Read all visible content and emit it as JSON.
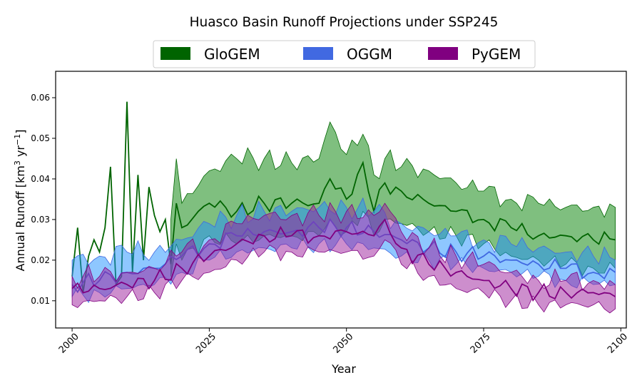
{
  "chart_data": {
    "type": "area",
    "title": "Huasco Basin Runoff Projections under SSP245",
    "xlabel": "Year",
    "ylabel_main": "Annual Runoff [km",
    "ylabel_sup1": "3",
    "ylabel_mid": " yr",
    "ylabel_sup2": "−1",
    "ylabel_end": "]",
    "xlim": [
      1997,
      2101
    ],
    "ylim": [
      0.0033,
      0.0665
    ],
    "x_ticks": [
      2000,
      2025,
      2050,
      2075,
      2100
    ],
    "x_tick_labels": [
      "2000",
      "2025",
      "2050",
      "2075",
      "2100"
    ],
    "y_ticks": [
      0.01,
      0.02,
      0.03,
      0.04,
      0.05,
      0.06
    ],
    "y_tick_labels": [
      "0.01",
      "0.02",
      "0.03",
      "0.04",
      "0.05",
      "0.06"
    ],
    "legend_position": "top-center, outside plot",
    "grid": false,
    "x_start": 2000,
    "x_end": 2099,
    "series": [
      {
        "name": "GloGEM",
        "line_color": "#006400",
        "fill_color": "#008000",
        "median_samples": [
          [
            2000,
            0.016
          ],
          [
            2001,
            0.028
          ],
          [
            2002,
            0.012
          ],
          [
            2003,
            0.021
          ],
          [
            2004,
            0.025
          ],
          [
            2005,
            0.022
          ],
          [
            2006,
            0.028
          ],
          [
            2007,
            0.043
          ],
          [
            2008,
            0.014
          ],
          [
            2009,
            0.016
          ],
          [
            2010,
            0.059
          ],
          [
            2011,
            0.017
          ],
          [
            2012,
            0.041
          ],
          [
            2013,
            0.02
          ],
          [
            2014,
            0.038
          ],
          [
            2015,
            0.031
          ],
          [
            2016,
            0.027
          ],
          [
            2017,
            0.03
          ],
          [
            2018,
            0.019
          ],
          [
            2019,
            0.034
          ],
          [
            2020,
            0.028
          ],
          [
            2025,
            0.034
          ],
          [
            2030,
            0.032
          ],
          [
            2035,
            0.034
          ],
          [
            2040,
            0.034
          ],
          [
            2045,
            0.034
          ],
          [
            2047,
            0.04
          ],
          [
            2050,
            0.035
          ],
          [
            2053,
            0.044
          ],
          [
            2055,
            0.032
          ],
          [
            2057,
            0.039
          ],
          [
            2060,
            0.037
          ],
          [
            2065,
            0.034
          ],
          [
            2070,
            0.032
          ],
          [
            2075,
            0.03
          ],
          [
            2080,
            0.028
          ],
          [
            2085,
            0.026
          ],
          [
            2090,
            0.026
          ],
          [
            2095,
            0.025
          ],
          [
            2099,
            0.025
          ]
        ],
        "upper_samples": [
          [
            2018,
            0.03
          ],
          [
            2019,
            0.045
          ],
          [
            2020,
            0.034
          ],
          [
            2025,
            0.042
          ],
          [
            2030,
            0.045
          ],
          [
            2035,
            0.045
          ],
          [
            2040,
            0.044
          ],
          [
            2045,
            0.045
          ],
          [
            2047,
            0.054
          ],
          [
            2050,
            0.046
          ],
          [
            2053,
            0.051
          ],
          [
            2055,
            0.041
          ],
          [
            2057,
            0.045
          ],
          [
            2060,
            0.043
          ],
          [
            2065,
            0.042
          ],
          [
            2070,
            0.039
          ],
          [
            2075,
            0.037
          ],
          [
            2080,
            0.035
          ],
          [
            2085,
            0.034
          ],
          [
            2090,
            0.033
          ],
          [
            2095,
            0.033
          ],
          [
            2099,
            0.033
          ]
        ],
        "lower_samples": [
          [
            2018,
            0.016
          ],
          [
            2019,
            0.024
          ],
          [
            2020,
            0.02
          ],
          [
            2025,
            0.026
          ],
          [
            2030,
            0.024
          ],
          [
            2035,
            0.026
          ],
          [
            2040,
            0.026
          ],
          [
            2045,
            0.026
          ],
          [
            2047,
            0.03
          ],
          [
            2050,
            0.027
          ],
          [
            2053,
            0.032
          ],
          [
            2055,
            0.026
          ],
          [
            2057,
            0.03
          ],
          [
            2060,
            0.029
          ],
          [
            2065,
            0.027
          ],
          [
            2070,
            0.026
          ],
          [
            2075,
            0.024
          ],
          [
            2080,
            0.021
          ],
          [
            2085,
            0.02
          ],
          [
            2090,
            0.019
          ],
          [
            2095,
            0.018
          ],
          [
            2099,
            0.018
          ]
        ]
      },
      {
        "name": "OGGM",
        "line_color": "#4169E1",
        "fill_color": "#1E90FF",
        "median_samples": [
          [
            2000,
            0.014
          ],
          [
            2005,
            0.015
          ],
          [
            2010,
            0.017
          ],
          [
            2015,
            0.018
          ],
          [
            2020,
            0.021
          ],
          [
            2025,
            0.024
          ],
          [
            2030,
            0.026
          ],
          [
            2035,
            0.027
          ],
          [
            2040,
            0.027
          ],
          [
            2045,
            0.028
          ],
          [
            2050,
            0.028
          ],
          [
            2055,
            0.027
          ],
          [
            2060,
            0.025
          ],
          [
            2065,
            0.023
          ],
          [
            2070,
            0.022
          ],
          [
            2075,
            0.021
          ],
          [
            2080,
            0.02
          ],
          [
            2085,
            0.019
          ],
          [
            2090,
            0.018
          ],
          [
            2095,
            0.017
          ],
          [
            2099,
            0.017
          ]
        ],
        "upper_samples": [
          [
            2000,
            0.02
          ],
          [
            2005,
            0.021
          ],
          [
            2010,
            0.022
          ],
          [
            2015,
            0.022
          ],
          [
            2020,
            0.025
          ],
          [
            2025,
            0.029
          ],
          [
            2030,
            0.031
          ],
          [
            2035,
            0.032
          ],
          [
            2040,
            0.032
          ],
          [
            2045,
            0.033
          ],
          [
            2050,
            0.033
          ],
          [
            2055,
            0.032
          ],
          [
            2060,
            0.029
          ],
          [
            2065,
            0.027
          ],
          [
            2070,
            0.026
          ],
          [
            2075,
            0.025
          ],
          [
            2080,
            0.024
          ],
          [
            2085,
            0.023
          ],
          [
            2090,
            0.022
          ],
          [
            2095,
            0.021
          ],
          [
            2099,
            0.02
          ]
        ],
        "lower_samples": [
          [
            2000,
            0.011
          ],
          [
            2005,
            0.012
          ],
          [
            2010,
            0.013
          ],
          [
            2015,
            0.014
          ],
          [
            2020,
            0.017
          ],
          [
            2025,
            0.02
          ],
          [
            2030,
            0.022
          ],
          [
            2035,
            0.023
          ],
          [
            2040,
            0.023
          ],
          [
            2045,
            0.024
          ],
          [
            2050,
            0.024
          ],
          [
            2055,
            0.023
          ],
          [
            2060,
            0.021
          ],
          [
            2065,
            0.02
          ],
          [
            2070,
            0.019
          ],
          [
            2075,
            0.018
          ],
          [
            2080,
            0.017
          ],
          [
            2085,
            0.016
          ],
          [
            2090,
            0.015
          ],
          [
            2095,
            0.014
          ],
          [
            2099,
            0.014
          ]
        ]
      },
      {
        "name": "PyGEM",
        "line_color": "#800080",
        "fill_color": "#9B1E9B",
        "median_samples": [
          [
            2000,
            0.013
          ],
          [
            2005,
            0.013
          ],
          [
            2010,
            0.014
          ],
          [
            2015,
            0.015
          ],
          [
            2020,
            0.018
          ],
          [
            2025,
            0.021
          ],
          [
            2030,
            0.024
          ],
          [
            2035,
            0.026
          ],
          [
            2040,
            0.026
          ],
          [
            2045,
            0.026
          ],
          [
            2050,
            0.027
          ],
          [
            2055,
            0.026
          ],
          [
            2057,
            0.03
          ],
          [
            2060,
            0.023
          ],
          [
            2065,
            0.019
          ],
          [
            2070,
            0.017
          ],
          [
            2075,
            0.015
          ],
          [
            2080,
            0.013
          ],
          [
            2085,
            0.012
          ],
          [
            2090,
            0.012
          ],
          [
            2095,
            0.012
          ],
          [
            2099,
            0.011
          ]
        ],
        "upper_samples": [
          [
            2000,
            0.016
          ],
          [
            2005,
            0.016
          ],
          [
            2010,
            0.017
          ],
          [
            2015,
            0.018
          ],
          [
            2020,
            0.022
          ],
          [
            2025,
            0.025
          ],
          [
            2030,
            0.029
          ],
          [
            2035,
            0.031
          ],
          [
            2040,
            0.031
          ],
          [
            2045,
            0.031
          ],
          [
            2050,
            0.032
          ],
          [
            2055,
            0.031
          ],
          [
            2057,
            0.034
          ],
          [
            2060,
            0.027
          ],
          [
            2065,
            0.023
          ],
          [
            2070,
            0.021
          ],
          [
            2075,
            0.019
          ],
          [
            2080,
            0.017
          ],
          [
            2085,
            0.015
          ],
          [
            2090,
            0.015
          ],
          [
            2095,
            0.015
          ],
          [
            2099,
            0.014
          ]
        ],
        "lower_samples": [
          [
            2000,
            0.009
          ],
          [
            2005,
            0.01
          ],
          [
            2010,
            0.011
          ],
          [
            2015,
            0.012
          ],
          [
            2020,
            0.015
          ],
          [
            2025,
            0.017
          ],
          [
            2030,
            0.02
          ],
          [
            2035,
            0.022
          ],
          [
            2040,
            0.022
          ],
          [
            2045,
            0.022
          ],
          [
            2050,
            0.022
          ],
          [
            2055,
            0.021
          ],
          [
            2057,
            0.025
          ],
          [
            2060,
            0.019
          ],
          [
            2065,
            0.016
          ],
          [
            2070,
            0.013
          ],
          [
            2075,
            0.012
          ],
          [
            2080,
            0.01
          ],
          [
            2085,
            0.009
          ],
          [
            2090,
            0.009
          ],
          [
            2095,
            0.009
          ],
          [
            2099,
            0.008
          ]
        ]
      }
    ]
  }
}
